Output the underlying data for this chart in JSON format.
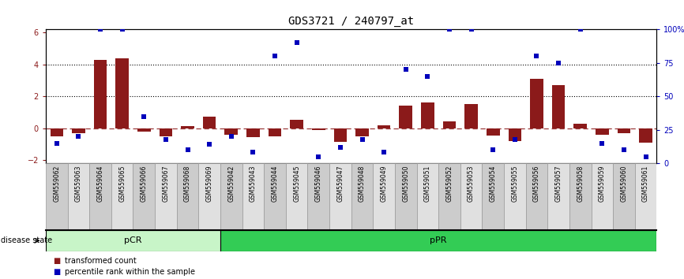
{
  "title": "GDS3721 / 240797_at",
  "samples": [
    "GSM559062",
    "GSM559063",
    "GSM559064",
    "GSM559065",
    "GSM559066",
    "GSM559067",
    "GSM559068",
    "GSM559069",
    "GSM559042",
    "GSM559043",
    "GSM559044",
    "GSM559045",
    "GSM559046",
    "GSM559047",
    "GSM559048",
    "GSM559049",
    "GSM559050",
    "GSM559051",
    "GSM559052",
    "GSM559053",
    "GSM559054",
    "GSM559055",
    "GSM559056",
    "GSM559057",
    "GSM559058",
    "GSM559059",
    "GSM559060",
    "GSM559061"
  ],
  "transformed_count": [
    -0.5,
    -0.3,
    4.3,
    4.4,
    -0.2,
    -0.5,
    0.15,
    0.7,
    -0.4,
    -0.55,
    -0.5,
    0.5,
    -0.1,
    -0.85,
    -0.5,
    0.2,
    1.4,
    1.6,
    0.4,
    1.5,
    -0.45,
    -0.8,
    3.1,
    2.7,
    0.3,
    -0.4,
    -0.3,
    -0.9
  ],
  "percentile_rank": [
    15,
    20,
    100,
    100,
    35,
    18,
    10,
    14,
    20,
    8,
    80,
    90,
    5,
    12,
    18,
    8,
    70,
    65,
    100,
    100,
    10,
    18,
    80,
    75,
    100,
    15,
    10,
    5
  ],
  "pCR_count": 8,
  "pPR_count": 20,
  "bar_color": "#8b1a1a",
  "dot_color": "#0000bb",
  "ylim_left": [
    -2.2,
    6.2
  ],
  "ylim_right": [
    0,
    100
  ],
  "yticks_left": [
    -2,
    0,
    2,
    4,
    6
  ],
  "yticks_right": [
    0,
    25,
    50,
    75,
    100
  ],
  "hlines": [
    4.0,
    2.0
  ],
  "dashed_hline": 0.0,
  "pCR_color": "#c8f5c8",
  "pPR_color": "#33cc55",
  "title_fontsize": 10,
  "legend_items": [
    "transformed count",
    "percentile rank within the sample"
  ],
  "label_bg_color": "#cccccc",
  "label_line_color": "#999999"
}
